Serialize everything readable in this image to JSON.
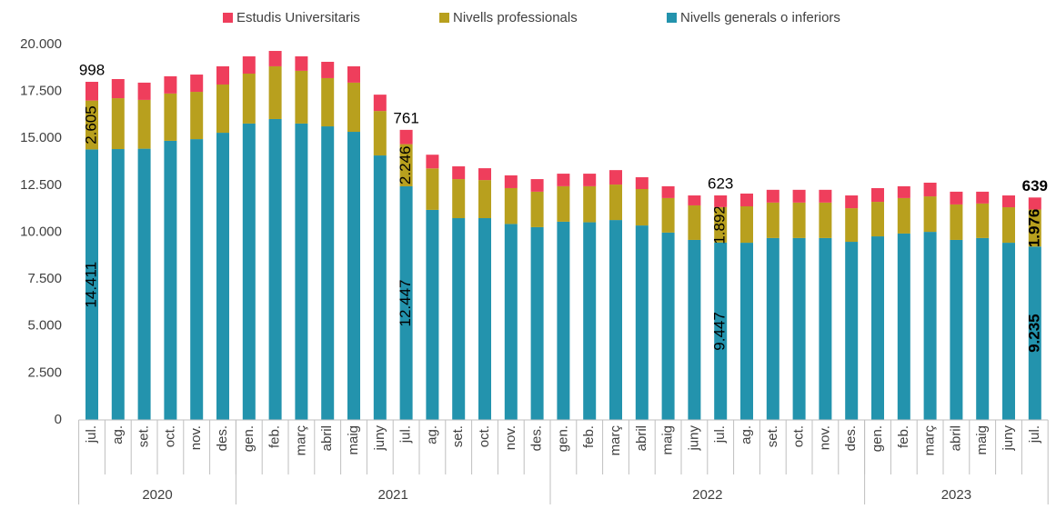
{
  "chart_data": {
    "type": "stacked_bar",
    "categories": [
      "jul.",
      "ag.",
      "set.",
      "oct.",
      "nov.",
      "des.",
      "gen.",
      "feb.",
      "març",
      "abril",
      "maig",
      "juny",
      "jul.",
      "ag.",
      "set.",
      "oct.",
      "nov.",
      "des.",
      "gen.",
      "feb.",
      "març",
      "abril",
      "maig",
      "juny",
      "jul.",
      "ag.",
      "set.",
      "oct.",
      "nov.",
      "des.",
      "gen.",
      "feb.",
      "març",
      "abril",
      "maig",
      "juny",
      "jul."
    ],
    "groups": [
      {
        "label": "2020",
        "span": 6
      },
      {
        "label": "2021",
        "span": 12
      },
      {
        "label": "2022",
        "span": 12
      },
      {
        "label": "2023",
        "span": 7
      }
    ],
    "series": [
      {
        "name": "Estudis Universitaris",
        "color": "#ef3e5c",
        "values": [
          998,
          1020,
          920,
          920,
          920,
          970,
          920,
          820,
          770,
          870,
          870,
          870,
          761,
          730,
          680,
          630,
          680,
          670,
          670,
          670,
          770,
          630,
          630,
          530,
          623,
          680,
          680,
          680,
          680,
          680,
          730,
          630,
          730,
          680,
          630,
          630,
          639
        ],
        "value_labels": [
          "998",
          null,
          null,
          null,
          null,
          null,
          null,
          null,
          null,
          null,
          null,
          null,
          "761",
          null,
          null,
          null,
          null,
          null,
          null,
          null,
          null,
          null,
          null,
          null,
          "623",
          null,
          null,
          null,
          null,
          null,
          null,
          null,
          null,
          null,
          null,
          null,
          "639"
        ]
      },
      {
        "name": "Nivells professionals",
        "color": "#b8a01e",
        "values": [
          2605,
          2710,
          2600,
          2520,
          2520,
          2570,
          2660,
          2810,
          2810,
          2570,
          2620,
          2370,
          2246,
          2210,
          2080,
          2030,
          1910,
          1890,
          1890,
          1920,
          1890,
          1940,
          1840,
          1840,
          1892,
          1940,
          1890,
          1890,
          1890,
          1790,
          1840,
          1890,
          1890,
          1890,
          1840,
          1890,
          1976
        ],
        "value_labels": [
          "2.605",
          null,
          null,
          null,
          null,
          null,
          null,
          null,
          null,
          null,
          null,
          null,
          "2.246",
          null,
          null,
          null,
          null,
          null,
          null,
          null,
          null,
          null,
          null,
          null,
          "1.892",
          null,
          null,
          null,
          null,
          null,
          null,
          null,
          null,
          null,
          null,
          null,
          "1.976"
        ]
      },
      {
        "name": "Nivells generals o inferiors",
        "color": "#2393ad",
        "values": [
          14411,
          14430,
          14450,
          14870,
          14960,
          15300,
          15790,
          16030,
          15790,
          15640,
          15350,
          14090,
          12447,
          11190,
          10750,
          10750,
          10440,
          10270,
          10560,
          10530,
          10650,
          10360,
          9980,
          9590,
          9447,
          9440,
          9690,
          9690,
          9690,
          9490,
          9780,
          9930,
          10020,
          9590,
          9690,
          9440,
          9235
        ],
        "value_labels": [
          "14.411",
          null,
          null,
          null,
          null,
          null,
          null,
          null,
          null,
          null,
          null,
          null,
          "12.447",
          null,
          null,
          null,
          null,
          null,
          null,
          null,
          null,
          null,
          null,
          null,
          "9.447",
          null,
          null,
          null,
          null,
          null,
          null,
          null,
          null,
          null,
          null,
          null,
          "9.235"
        ]
      }
    ],
    "ylim": [
      0,
      20000
    ],
    "yticks": [
      0,
      {
        "value": 2500,
        "label": "2.500"
      },
      {
        "value": 5000,
        "label": "5.000"
      },
      {
        "value": 7500,
        "label": "7.500"
      },
      {
        "value": 10000,
        "label": "10.000"
      },
      {
        "value": 12500,
        "label": "12.500"
      },
      {
        "value": 15000,
        "label": "15.000"
      },
      {
        "value": 17500,
        "label": "17.500"
      },
      {
        "value": 20000,
        "label": "20.000"
      }
    ],
    "grid": false,
    "legend": "top"
  }
}
